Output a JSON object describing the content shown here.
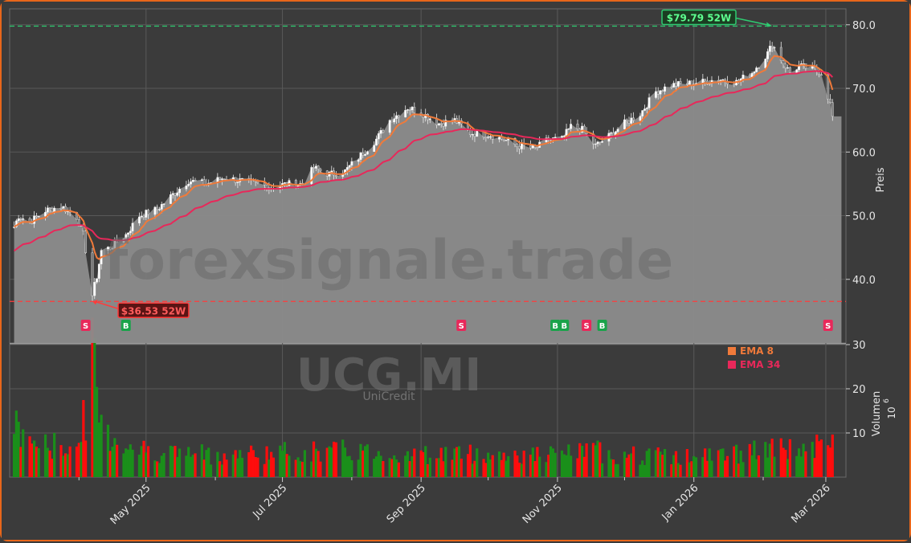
{
  "chart_data": {
    "type": "candlestick",
    "ticker": "UCG.MI",
    "company": "UniCredit",
    "watermark": "forexsignale.trade",
    "price_axis": {
      "label": "Preis",
      "ylim": [
        30,
        82.5
      ],
      "ticks": [
        "40.0",
        "50.0",
        "60.0",
        "70.0",
        "80.0"
      ]
    },
    "volume_axis": {
      "label": "Volumen",
      "unit": "10",
      "exp": "6",
      "ylim": [
        0,
        30
      ],
      "ticks": [
        "10",
        "20",
        "30"
      ]
    },
    "x_labels": [
      {
        "label": "May 2025",
        "date": "2025-05-01"
      },
      {
        "label": "Jul 2025",
        "date": "2025-07-01"
      },
      {
        "label": "Sep 2025",
        "date": "2025-09-01"
      },
      {
        "label": "Nov 2025",
        "date": "2025-11-01"
      },
      {
        "label": "Jan 2026",
        "date": "2026-01-01"
      },
      {
        "label": "Mar 2026",
        "date": "2026-03-01"
      }
    ],
    "x_minor_dates": [
      "2025-04-01",
      "2025-06-01",
      "2025-08-01",
      "2025-10-01",
      "2025-12-01",
      "2026-02-01"
    ],
    "x_range": [
      "2025-03-01",
      "2026-03-10"
    ],
    "high_52w": {
      "value": 79.79,
      "label": "$79.79 52W",
      "date": "2026-02-05"
    },
    "low_52w": {
      "value": 36.53,
      "label": "$36.53 52W",
      "date": "2025-04-07"
    },
    "legend": [
      {
        "name": "EMA 8",
        "color": "#f07a3a"
      },
      {
        "name": "EMA 34",
        "color": "#e8285a"
      }
    ],
    "signals": [
      {
        "date": "2025-04-04",
        "type": "S"
      },
      {
        "date": "2025-04-22",
        "type": "B"
      },
      {
        "date": "2025-09-19",
        "type": "S"
      },
      {
        "date": "2025-10-31",
        "type": "B"
      },
      {
        "date": "2025-11-04",
        "type": "B"
      },
      {
        "date": "2025-11-14",
        "type": "S"
      },
      {
        "date": "2025-11-21",
        "type": "B"
      },
      {
        "date": "2026-03-02",
        "type": "S"
      }
    ],
    "price_keypoints": [
      [
        "2025-03-01",
        46.5
      ],
      [
        "2025-03-05",
        50.0
      ],
      [
        "2025-03-10",
        49.0
      ],
      [
        "2025-03-17",
        50.8
      ],
      [
        "2025-03-24",
        51.5
      ],
      [
        "2025-03-31",
        49.8
      ],
      [
        "2025-04-03",
        47.0
      ],
      [
        "2025-04-07",
        37.5
      ],
      [
        "2025-04-09",
        40.5
      ],
      [
        "2025-04-11",
        44.5
      ],
      [
        "2025-04-15",
        45.0
      ],
      [
        "2025-04-22",
        47.0
      ],
      [
        "2025-04-28",
        50.0
      ],
      [
        "2025-05-06",
        51.0
      ],
      [
        "2025-05-12",
        53.0
      ],
      [
        "2025-05-20",
        55.5
      ],
      [
        "2025-05-28",
        55.0
      ],
      [
        "2025-06-05",
        56.0
      ],
      [
        "2025-06-12",
        55.5
      ],
      [
        "2025-06-20",
        55.0
      ],
      [
        "2025-06-26",
        54.5
      ],
      [
        "2025-07-03",
        55.0
      ],
      [
        "2025-07-10",
        55.0
      ],
      [
        "2025-07-15",
        57.5
      ],
      [
        "2025-07-22",
        56.5
      ],
      [
        "2025-07-29",
        57.0
      ],
      [
        "2025-08-05",
        59.5
      ],
      [
        "2025-08-12",
        62.0
      ],
      [
        "2025-08-18",
        65.0
      ],
      [
        "2025-08-26",
        67.0
      ],
      [
        "2025-09-02",
        66.0
      ],
      [
        "2025-09-09",
        64.5
      ],
      [
        "2025-09-16",
        65.0
      ],
      [
        "2025-09-23",
        63.0
      ],
      [
        "2025-10-01",
        62.8
      ],
      [
        "2025-10-08",
        62.0
      ],
      [
        "2025-10-14",
        61.0
      ],
      [
        "2025-10-22",
        60.5
      ],
      [
        "2025-10-28",
        62.0
      ],
      [
        "2025-11-03",
        62.0
      ],
      [
        "2025-11-07",
        64.0
      ],
      [
        "2025-11-12",
        63.5
      ],
      [
        "2025-11-18",
        61.0
      ],
      [
        "2025-11-24",
        62.5
      ],
      [
        "2025-12-01",
        64.5
      ],
      [
        "2025-12-08",
        66.0
      ],
      [
        "2025-12-15",
        69.5
      ],
      [
        "2025-12-22",
        70.5
      ],
      [
        "2026-01-05",
        71.0
      ],
      [
        "2026-01-12",
        71.5
      ],
      [
        "2026-01-20",
        71.0
      ],
      [
        "2026-01-27",
        72.5
      ],
      [
        "2026-02-03",
        75.5
      ],
      [
        "2026-02-05",
        77.0
      ],
      [
        "2026-02-10",
        74.0
      ],
      [
        "2026-02-13",
        72.5
      ],
      [
        "2026-02-17",
        73.5
      ],
      [
        "2026-02-24",
        73.0
      ],
      [
        "2026-02-27",
        72.5
      ],
      [
        "2026-03-03",
        67.5
      ],
      [
        "2026-03-04",
        65.5
      ]
    ],
    "volume_keypoints": [
      [
        "2025-03-01",
        12.0
      ],
      [
        "2025-03-15",
        7.0
      ],
      [
        "2025-04-01",
        7.0
      ],
      [
        "2025-04-04",
        15.0
      ],
      [
        "2025-04-07",
        27.5
      ],
      [
        "2025-04-10",
        14.0
      ],
      [
        "2025-04-15",
        9.0
      ],
      [
        "2025-05-01",
        6.0
      ],
      [
        "2025-06-01",
        5.0
      ],
      [
        "2025-07-01",
        5.5
      ],
      [
        "2025-08-01",
        6.0
      ],
      [
        "2025-09-01",
        5.0
      ],
      [
        "2025-09-15",
        5.5
      ],
      [
        "2025-10-01",
        5.0
      ],
      [
        "2025-11-01",
        5.0
      ],
      [
        "2025-11-15",
        6.0
      ],
      [
        "2025-12-01",
        5.0
      ],
      [
        "2026-01-01",
        4.5
      ],
      [
        "2026-02-01",
        6.0
      ],
      [
        "2026-03-04",
        7.0
      ]
    ]
  }
}
